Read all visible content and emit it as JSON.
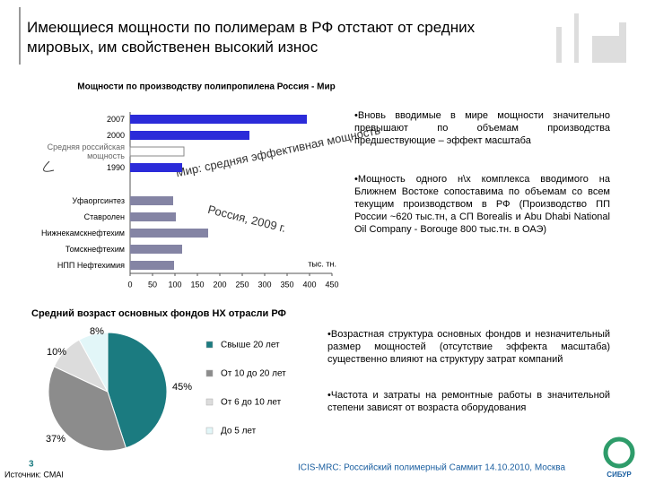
{
  "slide": {
    "title": "Имеющиеся мощности по полимерам в РФ отстают от средних мировых, им свойственен высокий износ",
    "bullets_top": [
      "•Вновь вводимые в мире мощности значительно превышают по объемам производства предшествующие – эффект масштаба",
      "•Мощность одного н\\х комплекса вводимого на Ближнем Востоке сопоставима по объемам со всем текущим производством в РФ (Производство ПП России ~620 тыс.тн, а СП Borealis и Abu Dhabi National Oil Company - Borouge 800 тыс.тн. в ОАЭ)"
    ],
    "bullets_bottom": [
      "•Возрастная структура основных фондов и незначительный размер мощностей (отсутствие эффекта масштаба) существенно влияют на структуру затрат компаний",
      "•Частота и затраты на ремонтные работы в значительной степени зависят от возраста оборудования"
    ],
    "source": "Источник: CMAI",
    "page": "3",
    "footer": "ICIS-MRC: Российский полимерный Саммит 14.10.2010, Москва",
    "logo": "СИБУР"
  },
  "chart_data": [
    {
      "type": "hbar",
      "title": "Мощности по производству полипропилена Россия - Мир",
      "categories": [
        "2007",
        "2000",
        "Средняя российская мощность",
        "1990",
        "Уфаоргсинтез",
        "Ставролен",
        "Нижнекамскнефтехим",
        "Томскнефтехим",
        "НПП Нефтехимия"
      ],
      "values": [
        394,
        266,
        120,
        116,
        96,
        102,
        174,
        116,
        98
      ],
      "colors": [
        "#2b2bd9",
        "#2b2bd9",
        "#ffffff",
        "#2b2bd9",
        "#8484a4",
        "#8484a4",
        "#8484a4",
        "#8484a4",
        "#8484a4"
      ],
      "xlim": [
        0,
        450
      ],
      "xticks": [
        0,
        50,
        100,
        150,
        200,
        250,
        300,
        350,
        400,
        450
      ],
      "unit": "тыс. тн.",
      "annotations": [
        "Мир: средняя эффективная мощность",
        "Россия, 2009 г."
      ]
    },
    {
      "type": "pie",
      "title": "Средний возраст основных фондов НХ отрасли РФ",
      "categories": [
        "Свыше 20 лет",
        "От 10 до 20 лет",
        "От 6 до 10 лет",
        "До 5 лет"
      ],
      "values": [
        45,
        37,
        10,
        8
      ],
      "value_labels": [
        "45%",
        "37%",
        "10%",
        "8%"
      ],
      "colors": [
        "#1b7b80",
        "#8c8c8c",
        "#dcdcdc",
        "#e2f6f8"
      ]
    }
  ]
}
